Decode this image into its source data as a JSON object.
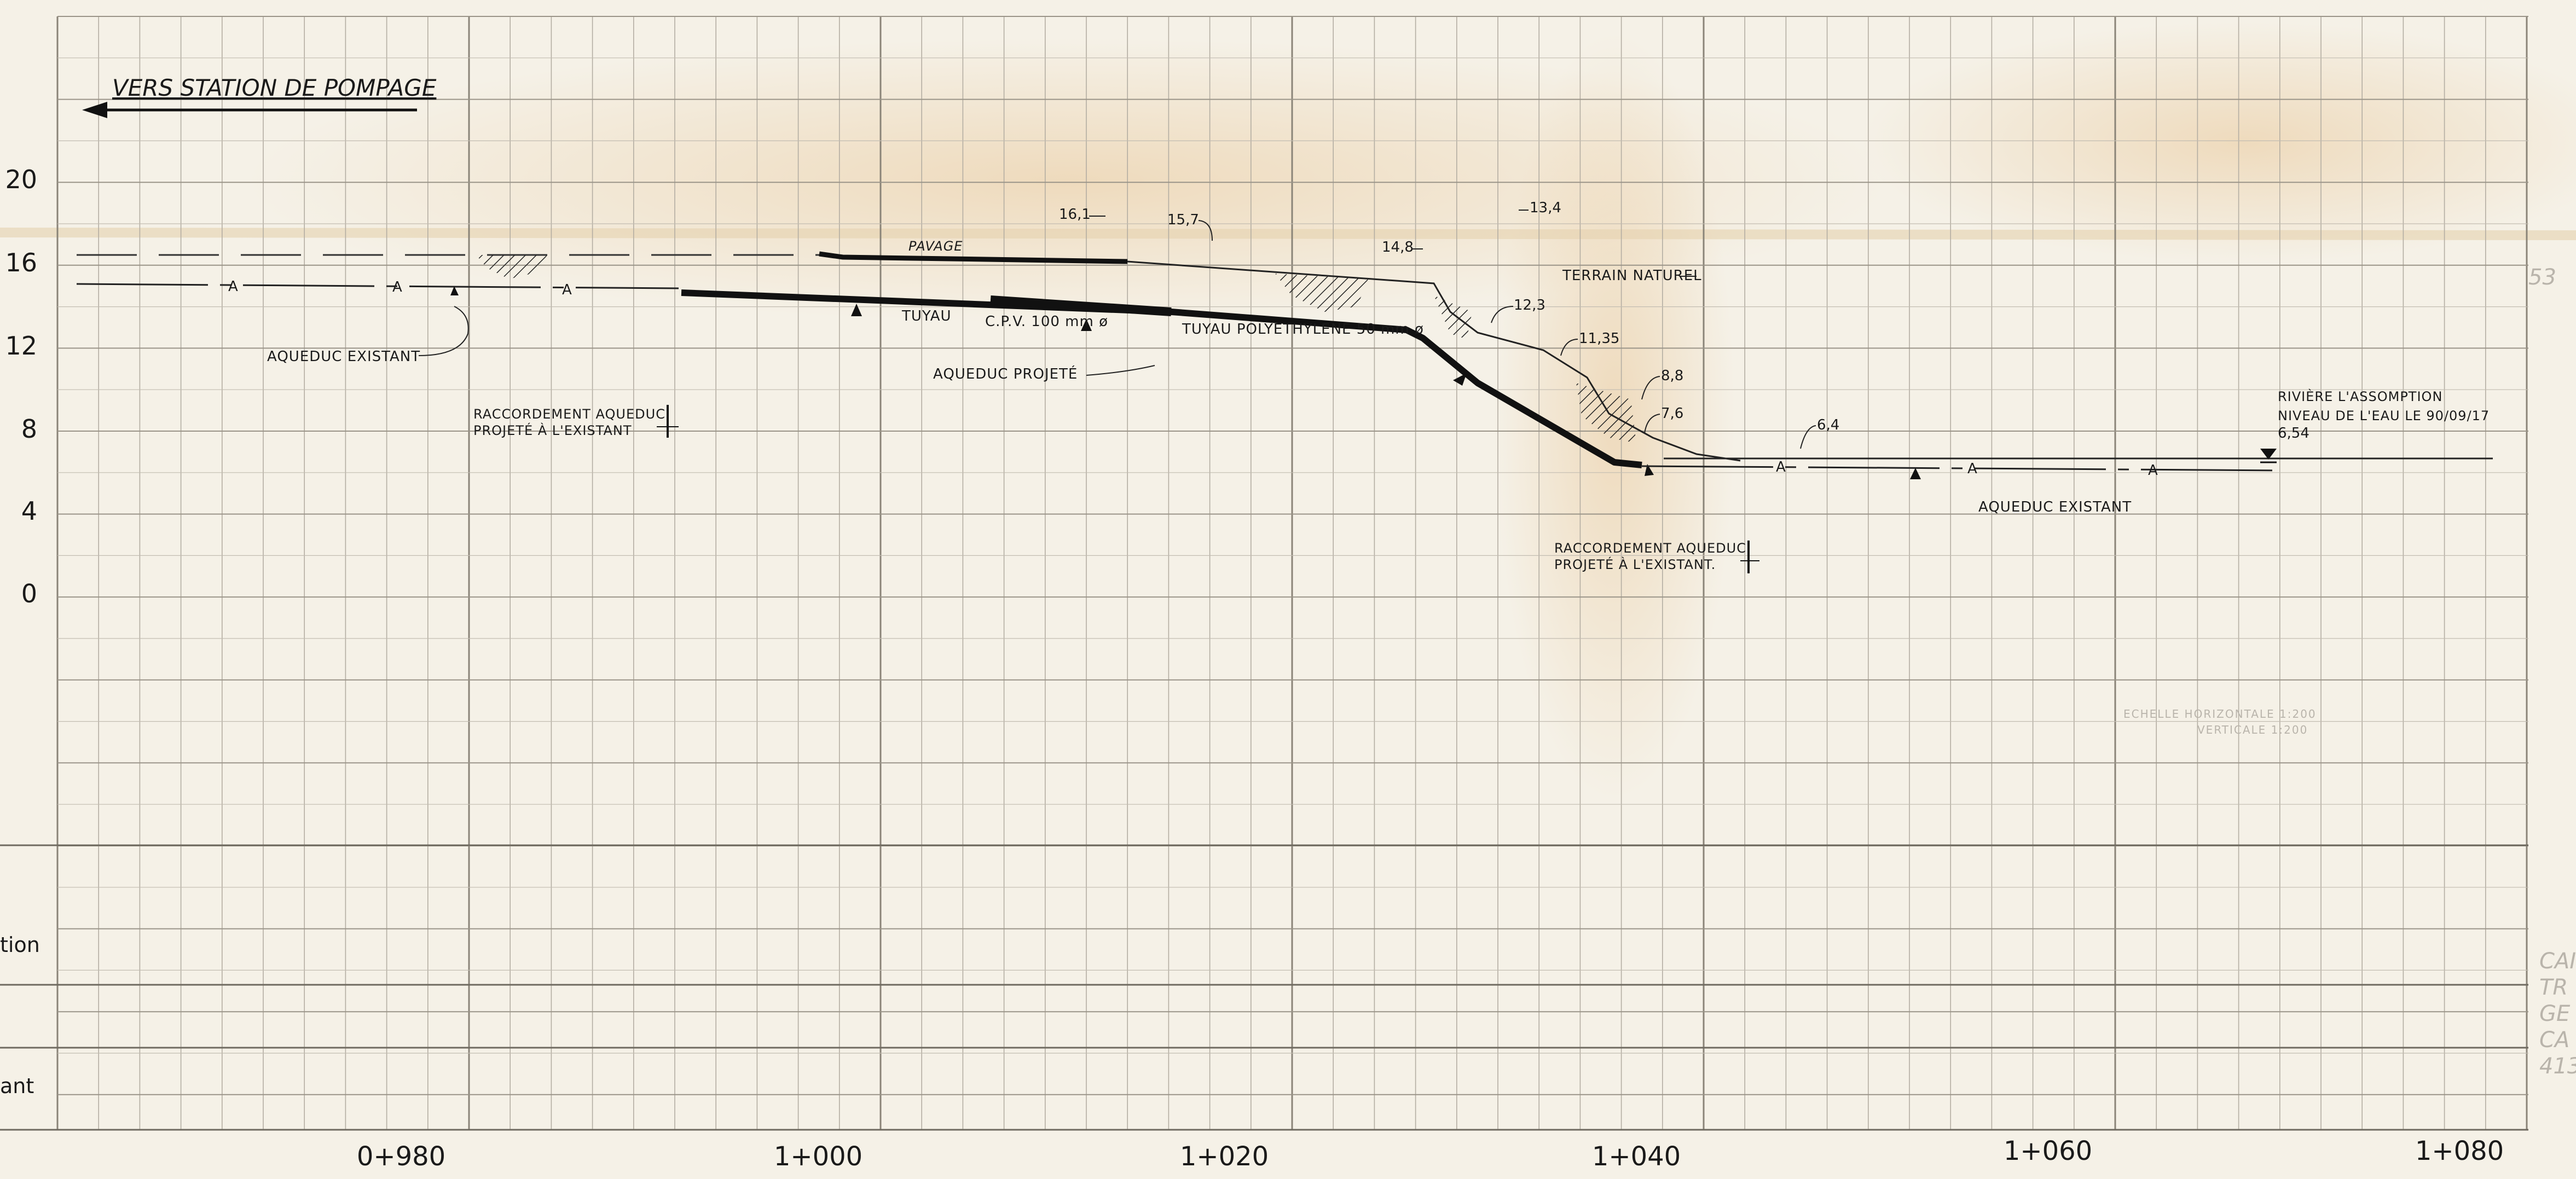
{
  "direction": {
    "label": "VERS STATION DE POMPAGE"
  },
  "y_axis": {
    "ticks": [
      "20",
      "16",
      "12",
      "8",
      "4",
      "0"
    ],
    "values": [
      20,
      16,
      12,
      8,
      4,
      0
    ]
  },
  "x_axis": {
    "stations": [
      "0+980",
      "1+000",
      "1+020",
      "1+040",
      "1+060",
      "1+080"
    ],
    "values": [
      980,
      1000,
      1020,
      1040,
      1060,
      1080
    ]
  },
  "row_labels": [
    "tion",
    "ant"
  ],
  "elevations": {
    "e161": "16,1",
    "e157": "15,7",
    "e134": "13,4",
    "e148": "14,8",
    "e123": "12,3",
    "e1135": "11,35",
    "e88": "8,8",
    "e76": "7,6",
    "e64": "6,4",
    "e654": "6,54"
  },
  "labels": {
    "pavage": "PAVAGE",
    "terrain_naturel": "TERRAIN NATUREL",
    "tuyau": "TUYAU",
    "cpv": "C.P.V.  100 mm ø",
    "tuyau_poly": "TUYAU  POLYETHYLENE  50 mm ø",
    "aqueduc_existant_left": "AQUEDUC EXISTANT",
    "aqueduc_projete": "AQUEDUC PROJETÉ",
    "raccord_left_1": "RACCORDEMENT AQUEDUC",
    "raccord_left_2": "PROJETÉ À L'EXISTANT",
    "raccord_right_1": "RACCORDEMENT AQUEDUC",
    "raccord_right_2": "PROJETÉ À L'EXISTANT.",
    "aqueduc_existant_right": "AQUEDUC EXISTANT",
    "riviere_1": "RIVIÈRE L'ASSOMPTION",
    "riviere_2": "NIVEAU DE L'EAU LE 90/09/17",
    "echelle_1": "ECHELLE  HORIZONTALE 1:200",
    "echelle_2": "VERTICALE 1:200",
    "marker_a": "A"
  },
  "margin_right": {
    "num": "53",
    "stamp": [
      "CAI",
      "TR",
      "GE",
      "CA",
      "413"
    ]
  }
}
